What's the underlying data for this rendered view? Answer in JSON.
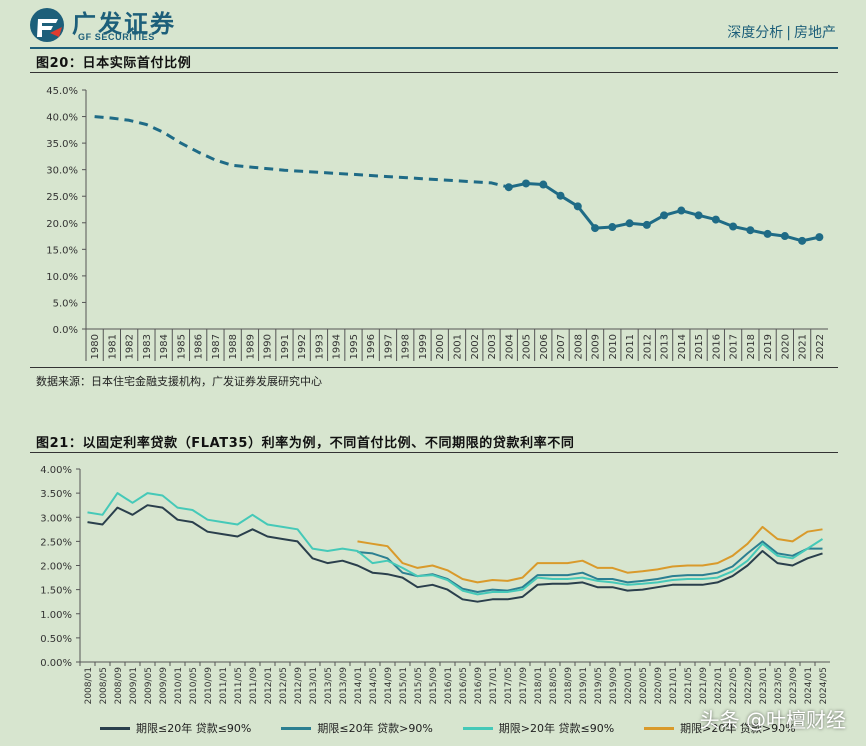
{
  "header": {
    "brand_cn": "广发证券",
    "brand_en": "GF SECURITIES",
    "section_left": "深度分析",
    "section_right": "房地产"
  },
  "figure20": {
    "title": "图20：日本实际首付比例",
    "source": "数据来源：日本住宅金融支援机构，广发证券发展研究中心"
  },
  "figure21": {
    "title": "图21：以固定利率贷款（FLAT35）利率为例，不同首付比例、不同期限的贷款利率不同"
  },
  "watermark": "头条 @叶檀财经",
  "chart_data": [
    {
      "type": "line",
      "title": "图20：日本实际首付比例",
      "x": [
        "1980",
        "1981",
        "1982",
        "1983",
        "1984",
        "1985",
        "1986",
        "1987",
        "1988",
        "1989",
        "1990",
        "1991",
        "1992",
        "1993",
        "1994",
        "1995",
        "1996",
        "1997",
        "1998",
        "1999",
        "2000",
        "2001",
        "2002",
        "2003",
        "2004",
        "2005",
        "2006",
        "2007",
        "2008",
        "2009",
        "2010",
        "2011",
        "2012",
        "2013",
        "2014",
        "2015",
        "2016",
        "2017",
        "2018",
        "2019",
        "2020",
        "2021",
        "2022"
      ],
      "yticks": [
        "0.0%",
        "5.0%",
        "10.0%",
        "15.0%",
        "20.0%",
        "25.0%",
        "30.0%",
        "35.0%",
        "40.0%",
        "45.0%"
      ],
      "ylim": [
        0,
        45
      ],
      "series": [
        {
          "style": "dashed",
          "color": "#1f6b86",
          "values": [
            40.0,
            39.7,
            39.3,
            38.5,
            37.0,
            35.0,
            33.3,
            31.8,
            30.8,
            30.5,
            30.2,
            29.9,
            29.7,
            29.5,
            29.3,
            29.1,
            28.9,
            28.7,
            28.5,
            28.3,
            28.1,
            27.9,
            27.7,
            27.5,
            26.7,
            null,
            null,
            null,
            null,
            null,
            null,
            null,
            null,
            null,
            null,
            null,
            null,
            null,
            null,
            null,
            null,
            null,
            null
          ]
        },
        {
          "style": "solid_markers",
          "color": "#1f6b86",
          "values": [
            null,
            null,
            null,
            null,
            null,
            null,
            null,
            null,
            null,
            null,
            null,
            null,
            null,
            null,
            null,
            null,
            null,
            null,
            null,
            null,
            null,
            null,
            null,
            null,
            26.7,
            27.4,
            27.2,
            25.1,
            23.1,
            19.0,
            19.2,
            19.9,
            19.6,
            21.4,
            22.3,
            21.4,
            20.6,
            19.3,
            18.6,
            17.9,
            17.5,
            16.6,
            17.3
          ]
        }
      ]
    },
    {
      "type": "line",
      "title": "图21：以固定利率贷款（FLAT35）利率为例，不同首付比例、不同期限的贷款利率不同",
      "x": [
        "2008/01",
        "2008/05",
        "2008/09",
        "2009/01",
        "2009/05",
        "2009/09",
        "2010/01",
        "2010/05",
        "2010/09",
        "2011/01",
        "2011/05",
        "2011/09",
        "2012/01",
        "2012/05",
        "2012/09",
        "2013/01",
        "2013/05",
        "2013/09",
        "2014/01",
        "2014/05",
        "2014/09",
        "2015/01",
        "2015/05",
        "2015/09",
        "2016/01",
        "2016/05",
        "2016/09",
        "2017/01",
        "2017/05",
        "2017/09",
        "2018/01",
        "2018/05",
        "2018/09",
        "2019/01",
        "2019/05",
        "2019/09",
        "2020/01",
        "2020/05",
        "2020/09",
        "2021/01",
        "2021/05",
        "2021/09",
        "2022/01",
        "2022/05",
        "2022/09",
        "2023/01",
        "2023/05",
        "2023/09",
        "2024/01",
        "2024/05"
      ],
      "yticks": [
        "0.00%",
        "0.50%",
        "1.00%",
        "1.50%",
        "2.00%",
        "2.50%",
        "3.00%",
        "3.50%",
        "4.00%"
      ],
      "ylim": [
        0,
        4
      ],
      "series": [
        {
          "name": "期限≤20年 贷款≤90%",
          "color": "#2a3f4c",
          "values": [
            2.9,
            2.85,
            3.2,
            3.05,
            3.25,
            3.2,
            2.95,
            2.9,
            2.7,
            2.65,
            2.6,
            2.75,
            2.6,
            2.55,
            2.5,
            2.15,
            2.05,
            2.1,
            2.0,
            1.85,
            1.82,
            1.75,
            1.55,
            1.6,
            1.5,
            1.3,
            1.25,
            1.3,
            1.3,
            1.35,
            1.6,
            1.62,
            1.62,
            1.65,
            1.55,
            1.55,
            1.48,
            1.5,
            1.55,
            1.6,
            1.6,
            1.6,
            1.65,
            1.78,
            2.0,
            2.3,
            2.05,
            2.0,
            2.15,
            2.25
          ]
        },
        {
          "name": "期限≤20年 贷款>90%",
          "color": "#2c7f91",
          "values": [
            null,
            null,
            null,
            null,
            null,
            null,
            null,
            null,
            null,
            null,
            null,
            null,
            null,
            null,
            null,
            null,
            null,
            null,
            2.28,
            2.25,
            2.15,
            1.85,
            1.78,
            1.82,
            1.72,
            1.52,
            1.45,
            1.5,
            1.48,
            1.55,
            1.8,
            1.8,
            1.8,
            1.85,
            1.72,
            1.72,
            1.65,
            1.68,
            1.72,
            1.78,
            1.8,
            1.8,
            1.85,
            1.98,
            2.25,
            2.5,
            2.25,
            2.2,
            2.35,
            2.35
          ]
        },
        {
          "name": "期限>20年 贷款≤90%",
          "color": "#45c9b8",
          "values": [
            3.1,
            3.05,
            3.5,
            3.3,
            3.5,
            3.45,
            3.2,
            3.15,
            2.95,
            2.9,
            2.85,
            3.05,
            2.85,
            2.8,
            2.75,
            2.35,
            2.3,
            2.35,
            2.3,
            2.05,
            2.1,
            1.95,
            1.78,
            1.8,
            1.7,
            1.48,
            1.4,
            1.45,
            1.45,
            1.5,
            1.75,
            1.72,
            1.72,
            1.75,
            1.68,
            1.65,
            1.6,
            1.62,
            1.65,
            1.7,
            1.72,
            1.72,
            1.75,
            1.88,
            2.1,
            2.45,
            2.2,
            2.15,
            2.35,
            2.55
          ]
        },
        {
          "name": "期限>20年 贷款>90%",
          "color": "#d99a2b",
          "values": [
            null,
            null,
            null,
            null,
            null,
            null,
            null,
            null,
            null,
            null,
            null,
            null,
            null,
            null,
            null,
            null,
            null,
            null,
            2.5,
            2.45,
            2.4,
            2.05,
            1.95,
            2.0,
            1.9,
            1.72,
            1.65,
            1.7,
            1.68,
            1.75,
            2.05,
            2.05,
            2.05,
            2.1,
            1.95,
            1.95,
            1.85,
            1.88,
            1.92,
            1.98,
            2.0,
            2.0,
            2.05,
            2.2,
            2.45,
            2.8,
            2.55,
            2.5,
            2.7,
            2.75
          ]
        }
      ]
    }
  ]
}
